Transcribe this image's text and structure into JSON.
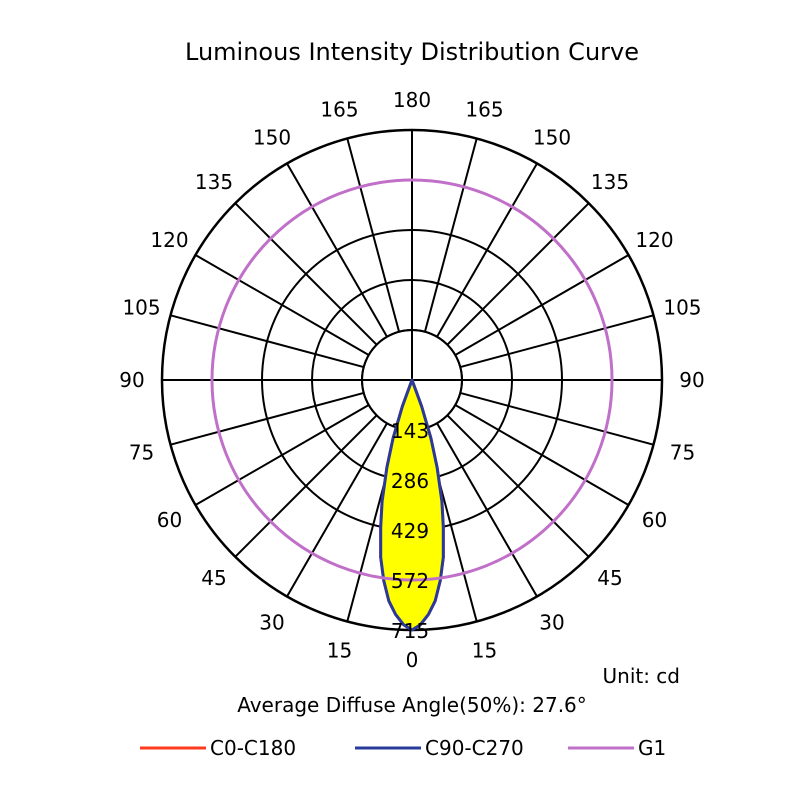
{
  "chart_data": {
    "type": "polar",
    "title": "Luminous Intensity Distribution Curve",
    "unit_label": "Unit: cd",
    "beam_angle_label": "Average Diffuse Angle(50%): 27.6°",
    "angle_ticks_left": [
      "180",
      "165",
      "150",
      "135",
      "120",
      "105",
      "90",
      "75",
      "60",
      "45",
      "30",
      "15",
      "0"
    ],
    "angle_ticks_right": [
      "165",
      "150",
      "135",
      "120",
      "105",
      "90",
      "75",
      "60",
      "45",
      "30",
      "15"
    ],
    "radial_ticks": [
      "143",
      "286",
      "429",
      "572",
      "715"
    ],
    "radial_values": [
      143,
      286,
      429,
      572,
      715
    ],
    "r_max": 715,
    "legend": [
      "C0-C180",
      "C90-C270",
      "G1"
    ],
    "series": [
      {
        "name": "C0-C180",
        "color": "#ff3b1f",
        "angles": [
          0,
          2,
          4,
          6,
          8,
          10,
          12,
          13.8,
          16,
          18,
          20,
          22
        ],
        "values": [
          715,
          700,
          672,
          635,
          580,
          515,
          430,
          358,
          260,
          175,
          80,
          0
        ]
      },
      {
        "name": "C90-C270",
        "color": "#2a3a9a",
        "fill": "#ffff00",
        "angles": [
          0,
          2,
          4,
          6,
          8,
          10,
          12,
          13.8,
          16,
          18,
          20,
          22
        ],
        "values": [
          715,
          700,
          672,
          635,
          580,
          515,
          430,
          358,
          260,
          175,
          80,
          0
        ]
      },
      {
        "name": "G1",
        "color": "#c070c8",
        "constant_value": 572
      }
    ]
  }
}
